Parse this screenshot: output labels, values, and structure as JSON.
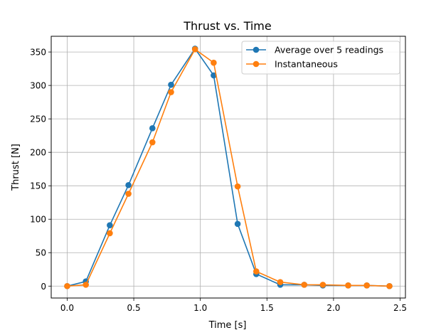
{
  "chart_data": {
    "type": "line",
    "title": "Thrust vs. Time",
    "xlabel": "Time [s]",
    "ylabel": "Thrust [N]",
    "xlim": [
      -0.12,
      2.54
    ],
    "ylim": [
      -17.8,
      373.5
    ],
    "xticks": [
      0.0,
      0.5,
      1.0,
      1.5,
      2.0,
      2.5
    ],
    "xtick_labels": [
      "0.0",
      "0.5",
      "1.0",
      "1.5",
      "2.0",
      "2.5"
    ],
    "yticks": [
      0,
      50,
      100,
      150,
      200,
      250,
      300,
      350
    ],
    "ytick_labels": [
      "0",
      "50",
      "100",
      "150",
      "200",
      "250",
      "300",
      "350"
    ],
    "grid": true,
    "legend_position": "top-right",
    "series": [
      {
        "name": "Average over 5 readings",
        "color": "#1f77b4",
        "marker": "circle",
        "x": [
          0.0,
          0.14,
          0.32,
          0.46,
          0.64,
          0.78,
          0.96,
          1.1,
          1.28,
          1.42,
          1.6,
          1.78,
          1.92,
          2.11,
          2.25,
          2.42
        ],
        "y": [
          0,
          7,
          91,
          151,
          236,
          301,
          355,
          315,
          93,
          18,
          2,
          2,
          1,
          1,
          1,
          0
        ]
      },
      {
        "name": "Instantaneous",
        "color": "#ff7f0e",
        "marker": "circle",
        "x": [
          0.0,
          0.14,
          0.32,
          0.46,
          0.64,
          0.78,
          0.96,
          1.1,
          1.28,
          1.42,
          1.6,
          1.78,
          1.92,
          2.11,
          2.25,
          2.42
        ],
        "y": [
          0,
          2,
          79,
          138,
          215,
          290,
          354,
          334,
          149,
          22,
          6,
          2,
          2,
          1,
          1,
          0
        ]
      }
    ]
  }
}
